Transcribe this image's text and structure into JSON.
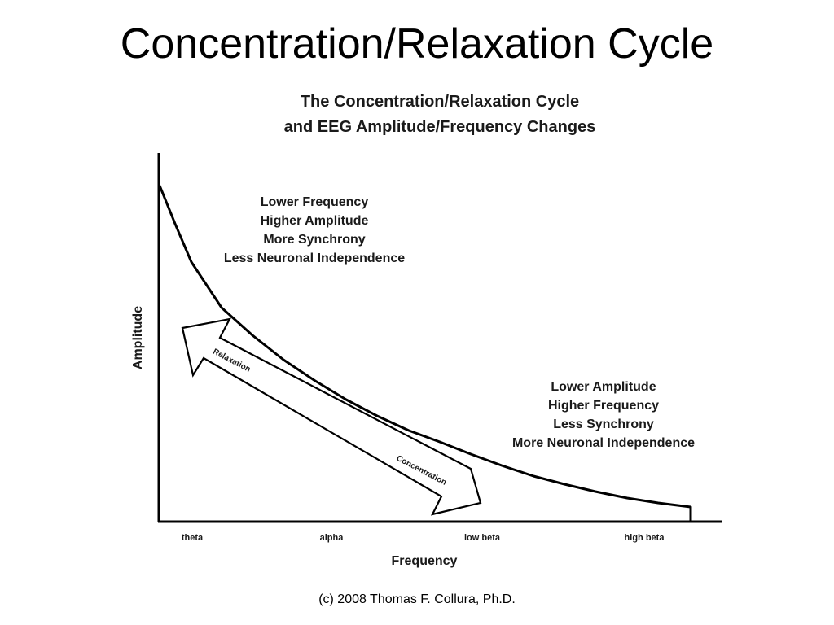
{
  "slide": {
    "title": "Concentration/Relaxation Cycle",
    "footer": "(c) 2008 Thomas F. Collura, Ph.D."
  },
  "diagram": {
    "title_line1": "The Concentration/Relaxation Cycle",
    "title_line2": "and EEG Amplitude/Frequency Changes",
    "y_axis_label": "Amplitude",
    "x_axis_label": "Frequency",
    "x_ticks": [
      "theta",
      "alpha",
      "low beta",
      "high beta"
    ],
    "low_freq_description": [
      "Lower Frequency",
      "Higher Amplitude",
      "More Synchrony",
      "Less Neuronal Independence"
    ],
    "high_freq_description": [
      "Lower Amplitude",
      "Higher Frequency",
      "Less Synchrony",
      "More Neuronal Independence"
    ],
    "arrow_labels": {
      "up": "Relaxation",
      "down": "Concentration"
    }
  }
}
